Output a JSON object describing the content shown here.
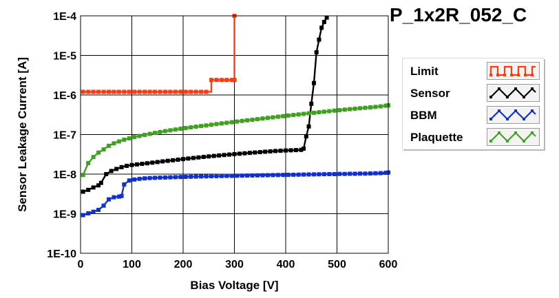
{
  "chart_data": {
    "type": "line",
    "title": "P_1x2R_052_C",
    "xlabel": "Bias Voltage [V]",
    "ylabel": "Sensor Leakage Current [A]",
    "xlim": [
      0,
      600
    ],
    "ylim": [
      1e-10,
      0.0001
    ],
    "yscale": "log",
    "grid": true,
    "legend_position": "right",
    "x_ticks": [
      {
        "value": 0,
        "label": "0"
      },
      {
        "value": 100,
        "label": "100"
      },
      {
        "value": 200,
        "label": "200"
      },
      {
        "value": 300,
        "label": "300"
      },
      {
        "value": 400,
        "label": "400"
      },
      {
        "value": 500,
        "label": "500"
      },
      {
        "value": 600,
        "label": "600"
      }
    ],
    "y_ticks": [
      {
        "value": 0.0001,
        "label": "1E-4"
      },
      {
        "value": 1e-05,
        "label": "1E-5"
      },
      {
        "value": 1e-06,
        "label": "1E-6"
      },
      {
        "value": 1e-07,
        "label": "1E-7"
      },
      {
        "value": 1e-08,
        "label": "1E-8"
      },
      {
        "value": 1e-09,
        "label": "1E-9"
      },
      {
        "value": 1e-10,
        "label": "1E-10"
      }
    ],
    "series": [
      {
        "name": "Limit",
        "color": "#ff3a10",
        "interpolation": "step",
        "markers": true,
        "x": [
          5,
          15,
          25,
          35,
          45,
          55,
          65,
          75,
          85,
          95,
          105,
          115,
          125,
          135,
          145,
          155,
          165,
          175,
          185,
          195,
          205,
          215,
          225,
          235,
          245,
          255,
          265,
          275,
          285,
          295,
          300,
          300
        ],
        "y": [
          1.2e-06,
          1.2e-06,
          1.2e-06,
          1.2e-06,
          1.2e-06,
          1.2e-06,
          1.2e-06,
          1.2e-06,
          1.2e-06,
          1.2e-06,
          1.2e-06,
          1.2e-06,
          1.2e-06,
          1.2e-06,
          1.2e-06,
          1.2e-06,
          1.2e-06,
          1.2e-06,
          1.2e-06,
          1.2e-06,
          1.2e-06,
          1.2e-06,
          1.2e-06,
          1.2e-06,
          1.2e-06,
          2.4e-06,
          2.4e-06,
          2.4e-06,
          2.4e-06,
          2.4e-06,
          2.4e-06,
          0.0001
        ]
      },
      {
        "name": "Sensor",
        "color": "#000000",
        "interpolation": "linear",
        "markers": true,
        "x": [
          5,
          15,
          25,
          35,
          40,
          50,
          60,
          70,
          80,
          90,
          100,
          110,
          120,
          130,
          140,
          150,
          160,
          170,
          180,
          190,
          200,
          210,
          220,
          230,
          240,
          250,
          260,
          270,
          280,
          290,
          300,
          310,
          320,
          330,
          340,
          350,
          360,
          370,
          380,
          390,
          400,
          410,
          420,
          430,
          435,
          440,
          445,
          450,
          455,
          460,
          465,
          470,
          475,
          480
        ],
        "y": [
          3.6e-09,
          4e-09,
          4.6e-09,
          5.2e-09,
          6e-09,
          1e-08,
          1.2e-08,
          1.35e-08,
          1.5e-08,
          1.62e-08,
          1.7e-08,
          1.76e-08,
          1.82e-08,
          1.88e-08,
          1.95e-08,
          2.02e-08,
          2.1e-08,
          2.17e-08,
          2.24e-08,
          2.32e-08,
          2.4e-08,
          2.48e-08,
          2.56e-08,
          2.64e-08,
          2.72e-08,
          2.8e-08,
          2.88e-08,
          2.96e-08,
          3.04e-08,
          3.12e-08,
          3.2e-08,
          3.28e-08,
          3.36e-08,
          3.44e-08,
          3.52e-08,
          3.6e-08,
          3.68e-08,
          3.76e-08,
          3.84e-08,
          3.9e-08,
          3.96e-08,
          4e-08,
          4.05e-08,
          4.1e-08,
          4.4e-08,
          9e-08,
          1.6e-07,
          6e-07,
          2e-06,
          1.2e-05,
          2.5e-05,
          5e-05,
          7e-05,
          9e-05
        ]
      },
      {
        "name": "BBM",
        "color": "#1030d0",
        "interpolation": "linear",
        "markers": true,
        "x": [
          5,
          15,
          25,
          35,
          45,
          55,
          65,
          75,
          80,
          85,
          95,
          105,
          115,
          125,
          135,
          145,
          155,
          165,
          175,
          185,
          195,
          205,
          215,
          225,
          235,
          245,
          255,
          265,
          275,
          285,
          295,
          305,
          315,
          325,
          335,
          345,
          355,
          365,
          375,
          385,
          395,
          405,
          415,
          425,
          435,
          445,
          455,
          465,
          475,
          485,
          495,
          505,
          515,
          525,
          535,
          545,
          555,
          565,
          575,
          585,
          595,
          600
        ],
        "y": [
          9.2e-10,
          1.02e-09,
          1.12e-09,
          1.25e-09,
          1.6e-09,
          2.3e-09,
          2.6e-09,
          2.7e-09,
          2.8e-09,
          5.5e-09,
          6.9e-09,
          7.3e-09,
          7.6e-09,
          7.8e-09,
          7.95e-09,
          8.05e-09,
          8.15e-09,
          8.22e-09,
          8.3e-09,
          8.38e-09,
          8.45e-09,
          8.52e-09,
          8.6e-09,
          8.66e-09,
          8.72e-09,
          8.78e-09,
          8.85e-09,
          8.9e-09,
          8.95e-09,
          9e-09,
          9.05e-09,
          9.1e-09,
          9.15e-09,
          9.2e-09,
          9.25e-09,
          9.3e-09,
          9.35e-09,
          9.4e-09,
          9.45e-09,
          9.5e-09,
          9.55e-09,
          9.6e-09,
          9.65e-09,
          9.7e-09,
          9.75e-09,
          9.8e-09,
          9.85e-09,
          9.9e-09,
          9.95e-09,
          1e-08,
          1e-08,
          1.01e-08,
          1.01e-08,
          1.02e-08,
          1.02e-08,
          1.03e-08,
          1.03e-08,
          1.04e-08,
          1.05e-08,
          1.06e-08,
          1.08e-08,
          1.1e-08
        ]
      },
      {
        "name": "Plaquette",
        "color": "#40a020",
        "interpolation": "linear",
        "markers": true,
        "x": [
          5,
          15,
          25,
          35,
          45,
          55,
          65,
          75,
          85,
          95,
          105,
          115,
          125,
          135,
          145,
          155,
          165,
          175,
          185,
          195,
          205,
          215,
          225,
          235,
          245,
          255,
          265,
          275,
          285,
          295,
          305,
          315,
          325,
          335,
          345,
          355,
          365,
          375,
          385,
          395,
          405,
          415,
          425,
          435,
          445,
          455,
          465,
          475,
          485,
          495,
          505,
          515,
          525,
          535,
          545,
          555,
          565,
          575,
          585,
          595,
          600
        ],
        "y": [
          9.5e-09,
          1.9e-08,
          2.7e-08,
          3.5e-08,
          4.2e-08,
          5.2e-08,
          6e-08,
          6.7e-08,
          7.4e-08,
          8e-08,
          8.6e-08,
          9.2e-08,
          9.8e-08,
          1.04e-07,
          1.1e-07,
          1.16e-07,
          1.22e-07,
          1.28e-07,
          1.34e-07,
          1.4e-07,
          1.46e-07,
          1.52e-07,
          1.58e-07,
          1.64e-07,
          1.7e-07,
          1.77e-07,
          1.84e-07,
          1.91e-07,
          1.98e-07,
          2.05e-07,
          2.13e-07,
          2.21e-07,
          2.29e-07,
          2.37e-07,
          2.45e-07,
          2.54e-07,
          2.63e-07,
          2.72e-07,
          2.82e-07,
          2.92e-07,
          3.02e-07,
          3.12e-07,
          3.22e-07,
          3.33e-07,
          3.44e-07,
          3.55e-07,
          3.66e-07,
          3.78e-07,
          3.9e-07,
          4.02e-07,
          4.14e-07,
          4.26e-07,
          4.38e-07,
          4.5e-07,
          4.62e-07,
          4.74e-07,
          4.86e-07,
          5e-07,
          5.15e-07,
          5.35e-07,
          5.5e-07
        ]
      }
    ]
  }
}
